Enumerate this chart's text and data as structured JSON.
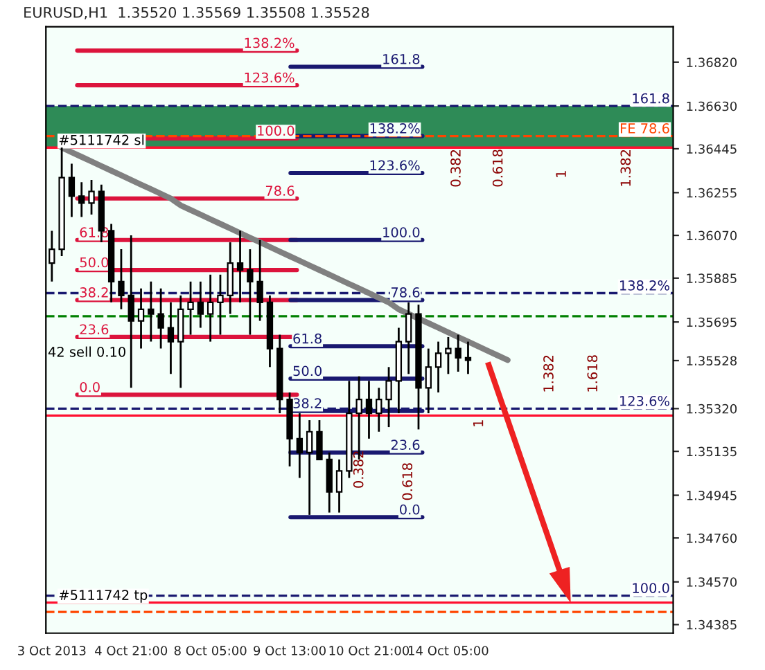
{
  "chart_data": {
    "type": "candlestick",
    "title": "EURUSD,H1  1.35520 1.35569 1.35508 1.35528",
    "categories": [
      "3 Oct 2013",
      null,
      null,
      null,
      null,
      null,
      null,
      null,
      "4 Oct 21:00",
      null,
      null,
      null,
      null,
      null,
      null,
      null,
      "8 Oct 05:00",
      null,
      null,
      null,
      null,
      null,
      null,
      null,
      "9 Oct 13:00",
      null,
      null,
      null,
      null,
      null,
      null,
      null,
      "10 Oct 21:00",
      null,
      null,
      null,
      null,
      null,
      null,
      null,
      "14 Oct 05:00",
      null,
      null,
      null,
      null,
      null,
      null,
      null,
      null,
      null,
      null,
      null,
      null,
      null,
      null,
      null,
      null,
      null,
      null,
      null,
      null,
      null,
      null
    ],
    "ohlc": [
      [
        1.3595,
        1.3609,
        1.3587,
        1.3601
      ],
      [
        1.3601,
        1.3645,
        1.3598,
        1.3632
      ],
      [
        1.3632,
        1.3638,
        1.3615,
        1.3624
      ],
      [
        1.3624,
        1.363,
        1.3615,
        1.3621
      ],
      [
        1.3621,
        1.3631,
        1.3616,
        1.3626
      ],
      [
        1.3626,
        1.3629,
        1.3604,
        1.3609
      ],
      [
        1.3609,
        1.3612,
        1.3578,
        1.3587
      ],
      [
        1.3587,
        1.3601,
        1.3575,
        1.3581
      ],
      [
        1.3581,
        1.3607,
        1.3541,
        1.357
      ],
      [
        1.357,
        1.3584,
        1.3558,
        1.3575
      ],
      [
        1.3575,
        1.3587,
        1.3561,
        1.3573
      ],
      [
        1.3573,
        1.3584,
        1.3558,
        1.3567
      ],
      [
        1.3567,
        1.3578,
        1.3547,
        1.3561
      ],
      [
        1.3561,
        1.3581,
        1.3541,
        1.3575
      ],
      [
        1.3575,
        1.3587,
        1.3564,
        1.3578
      ],
      [
        1.3578,
        1.3587,
        1.3567,
        1.3573
      ],
      [
        1.3573,
        1.359,
        1.3561,
        1.3578
      ],
      [
        1.3578,
        1.359,
        1.3564,
        1.3581
      ],
      [
        1.3581,
        1.3604,
        1.3573,
        1.3595
      ],
      [
        1.3595,
        1.3609,
        1.3578,
        1.3592
      ],
      [
        1.3592,
        1.3601,
        1.3564,
        1.3587
      ],
      [
        1.3587,
        1.3605,
        1.357,
        1.3578
      ],
      [
        1.3578,
        1.3581,
        1.355,
        1.3558
      ],
      [
        1.3558,
        1.3564,
        1.353,
        1.3536
      ],
      [
        1.3536,
        1.3539,
        1.3507,
        1.3519
      ],
      [
        1.3519,
        1.353,
        1.3502,
        1.3513
      ],
      [
        1.3513,
        1.3527,
        1.3486,
        1.3522
      ],
      [
        1.3522,
        1.3527,
        1.351,
        1.351
      ],
      [
        1.351,
        1.3513,
        1.3487,
        1.3496
      ],
      [
        1.3496,
        1.351,
        1.3487,
        1.3505
      ],
      [
        1.3505,
        1.3544,
        1.3502,
        1.353
      ],
      [
        1.353,
        1.3546,
        1.351,
        1.3536
      ],
      [
        1.3536,
        1.3544,
        1.3519,
        1.353
      ],
      [
        1.353,
        1.3541,
        1.3522,
        1.3536
      ],
      [
        1.3536,
        1.355,
        1.3524,
        1.3544
      ],
      [
        1.3544,
        1.3567,
        1.353,
        1.3561
      ],
      [
        1.3561,
        1.3578,
        1.3547,
        1.3573
      ],
      [
        1.3573,
        1.3577,
        1.3523,
        1.3541
      ],
      [
        1.3541,
        1.3558,
        1.353,
        1.355
      ],
      [
        1.355,
        1.3561,
        1.3539,
        1.3556
      ],
      [
        1.3556,
        1.3563,
        1.3547,
        1.3558
      ],
      [
        1.3558,
        1.3564,
        1.3548,
        1.3554
      ],
      [
        1.3554,
        1.3561,
        1.3547,
        1.3553
      ],
      null,
      null,
      null,
      null,
      null,
      null,
      null,
      null,
      null,
      null,
      null,
      null,
      null,
      null,
      null,
      null,
      null,
      null,
      null,
      null
    ],
    "color": "#000000",
    "series": [
      {
        "type": "line",
        "color": "#808080",
        "values": [
          null,
          1.3645,
          1.3643,
          1.3641,
          1.3639,
          1.3637,
          1.3635,
          1.3633,
          1.3631,
          1.3629,
          1.3627,
          1.3625,
          1.3623,
          1.362,
          1.3618,
          1.3616,
          1.3614,
          1.3612,
          1.361,
          1.3608,
          1.3606,
          1.3604,
          1.3602,
          1.36,
          1.3598,
          1.3596,
          1.3594,
          1.3592,
          1.359,
          1.3588,
          1.3586,
          1.3584,
          1.3582,
          1.358,
          1.3578,
          1.3575,
          1.3573,
          1.3571,
          1.3569,
          1.3567,
          1.3565,
          1.3563,
          1.3561,
          1.3559,
          1.3557,
          1.3555,
          1.3553,
          null,
          null,
          null,
          null,
          null,
          null,
          null,
          null,
          null,
          null,
          null,
          null,
          null,
          null,
          null,
          null
        ]
      }
    ],
    "ylim": [
      1.34348,
      1.36973
    ],
    "yticks": [
      1.34385,
      {
        "value": 1.3457,
        "label": "1.34570"
      },
      {
        "value": 1.3476,
        "label": "1.34760"
      },
      1.34945,
      1.35135,
      {
        "value": 1.3532,
        "label": "1.35320"
      },
      1.35528,
      1.35695,
      1.35885,
      {
        "value": 1.3607,
        "label": "1.36070"
      },
      1.36255,
      1.36445,
      {
        "value": 1.3663,
        "label": "1.36630"
      },
      {
        "value": 1.3682,
        "label": "1.36820"
      }
    ],
    "bands": [
      {
        "axis": "y",
        "from": 1.3645,
        "to": 1.3663,
        "color": "#2e8b57"
      }
    ],
    "ref_lines": [
      {
        "axis": "y",
        "value": 1.3687,
        "color": "#dc143c",
        "line_style": "solid"
      },
      {
        "axis": "y",
        "value": 1.3672,
        "color": "#dc143c",
        "line_style": "solid"
      },
      {
        "axis": "y",
        "value": 1.3649,
        "color": "#dc143c",
        "line_style": "solid"
      },
      {
        "axis": "y",
        "value": 1.3623,
        "color": "#dc143c",
        "line_style": "solid"
      },
      {
        "axis": "y",
        "value": 1.3605,
        "color": "#dc143c",
        "line_style": "solid"
      },
      {
        "axis": "y",
        "value": 1.3592,
        "color": "#dc143c",
        "line_style": "solid"
      },
      {
        "axis": "y",
        "value": 1.3579,
        "color": "#dc143c",
        "line_style": "solid"
      },
      {
        "axis": "y",
        "value": 1.3563,
        "color": "#dc143c",
        "line_style": "solid"
      },
      {
        "axis": "y",
        "value": 1.3538,
        "color": "#dc143c",
        "line_style": "solid"
      },
      {
        "axis": "y",
        "value": 1.368,
        "color": "#191970",
        "line_style": "solid"
      },
      {
        "axis": "y",
        "value": 1.365,
        "color": "#191970",
        "line_style": "solid"
      },
      {
        "axis": "y",
        "value": 1.3634,
        "color": "#191970",
        "line_style": "solid"
      },
      {
        "axis": "y",
        "value": 1.3605,
        "color": "#191970",
        "line_style": "solid"
      },
      {
        "axis": "y",
        "value": 1.3579,
        "color": "#191970",
        "line_style": "solid"
      },
      {
        "axis": "y",
        "value": 1.3559,
        "color": "#191970",
        "line_style": "solid"
      },
      {
        "axis": "y",
        "value": 1.3545,
        "color": "#191970",
        "line_style": "solid"
      },
      {
        "axis": "y",
        "value": 1.3531,
        "color": "#191970",
        "line_style": "solid"
      },
      {
        "axis": "y",
        "value": 1.3513,
        "color": "#191970",
        "line_style": "solid"
      },
      {
        "axis": "y",
        "value": 1.3485,
        "color": "#191970",
        "line_style": "solid"
      },
      {
        "axis": "y",
        "value": 1.3645,
        "color": "#ff1030",
        "line_style": "solid"
      },
      {
        "axis": "y",
        "value": 1.3663,
        "color": "#191970",
        "line_style": "dashed"
      },
      {
        "axis": "y",
        "value": 1.365,
        "color": "#ff4500",
        "line_style": "dashed"
      },
      {
        "axis": "y",
        "value": 1.3582,
        "color": "#191970",
        "line_style": "dashed"
      },
      {
        "axis": "y",
        "value": 1.3572,
        "color": "#008000",
        "line_style": "dashed"
      },
      {
        "axis": "y",
        "value": 1.3532,
        "color": "#191970",
        "line_style": "dashed"
      },
      {
        "axis": "y",
        "value": 1.3529,
        "color": "#ff1030",
        "line_style": "solid"
      },
      {
        "axis": "y",
        "value": 1.3451,
        "color": "#191970",
        "line_style": "dashed"
      },
      {
        "axis": "y",
        "value": 1.3448,
        "color": "#ff1030",
        "line_style": "solid"
      },
      {
        "axis": "y",
        "value": 1.3444,
        "color": "#ff4500",
        "line_style": "dashed"
      }
    ],
    "annotations": [
      {
        "text": "138.2%",
        "y": 1.3687
      },
      {
        "text": "123.6%",
        "y": 1.3672
      },
      {
        "text": "100.0",
        "y": 1.3649
      },
      {
        "text": "78.6",
        "y": 1.3623
      },
      {
        "text": "61.8",
        "y": 1.3605
      },
      {
        "text": "50.0",
        "y": 1.3592
      },
      {
        "text": "38.2",
        "y": 1.3579
      },
      {
        "text": "23.6",
        "y": 1.3563
      },
      {
        "text": "0.0",
        "y": 1.3538
      },
      {
        "text": "161.8",
        "y": 1.368
      },
      {
        "text": "138.2%",
        "y": 1.365
      },
      {
        "text": "123.6%",
        "y": 1.3634
      },
      {
        "text": "100.0",
        "y": 1.3605
      },
      {
        "text": "78.6",
        "y": 1.3579
      },
      {
        "text": "61.8",
        "y": 1.3559
      },
      {
        "text": "50.0",
        "y": 1.3545
      },
      {
        "text": "38.2",
        "y": 1.3531
      },
      {
        "text": "23.6",
        "y": 1.3513
      },
      {
        "text": "0.0",
        "y": 1.3485
      },
      {
        "text": "#5111742 sl",
        "y": 1.3645
      },
      {
        "text": "161.8",
        "y": 1.3663
      },
      {
        "text": "FE 78.6",
        "y": 1.365
      },
      {
        "text": "138.2%",
        "y": 1.3582
      },
      {
        "text": "123.6%",
        "y": 1.3532
      },
      {
        "text": "100.0",
        "y": 1.3451
      },
      {
        "text": "#5111742 tp",
        "y": 1.3448
      },
      "42 sell 0.10",
      "0.382",
      "0.618",
      "1",
      "1.382",
      "0.382",
      "0.618",
      "1",
      "1.382",
      "1.618"
    ],
    "grid": false
  }
}
